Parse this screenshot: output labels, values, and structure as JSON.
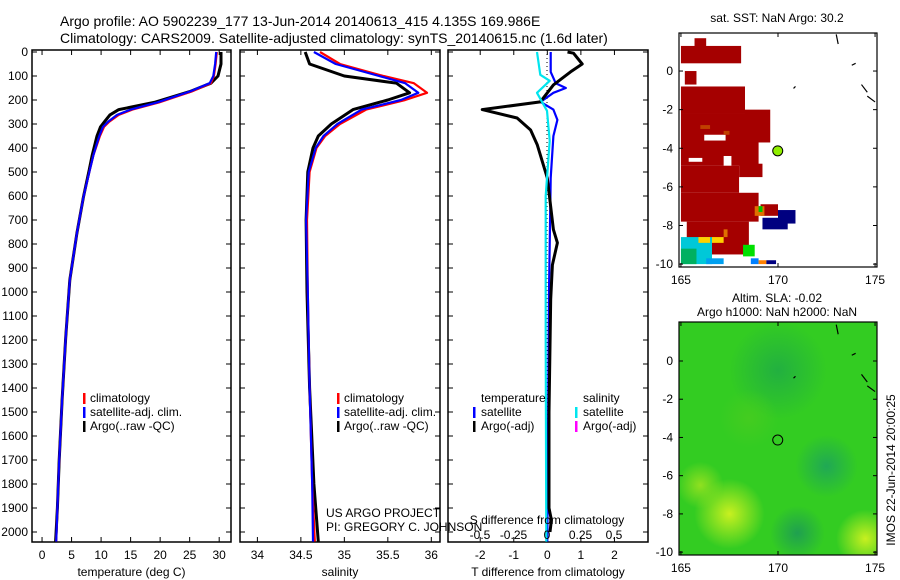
{
  "title": {
    "line1": "Argo profile: AO 5902239_177 13-Jun-2014 20140613_415 4.135S 169.986E",
    "line2": "Climatology: CARS2009. Satellite-adjusted climatology: synTS_20140615.nc (1.6d later)"
  },
  "credit": {
    "line1": "US ARGO PROJECT",
    "line2": "PI: GREGORY C. JOHNSON"
  },
  "footer_stamp": "IMOS 22-Jun-2014 20:00:25",
  "colors": {
    "climatology": "#ff0000",
    "satellite": "#0000ff",
    "argo": "#000000",
    "sal_satellite": "#00e5ee",
    "sal_argo": "#ff00ff",
    "sst_warm": "#a50000",
    "sst_navy": "#000080",
    "sla_green": "#33cc22"
  },
  "chart_data": [
    {
      "type": "line",
      "name": "temperature-profile",
      "xlabel": "temperature (deg C)",
      "xlim": [
        -1.7,
        32
      ],
      "ylim": [
        0,
        2050
      ],
      "y_reversed": true,
      "xticks": [
        0,
        5,
        10,
        15,
        20,
        25,
        30
      ],
      "yticks": [
        0,
        100,
        200,
        300,
        400,
        500,
        600,
        700,
        800,
        900,
        1000,
        1100,
        1200,
        1300,
        1400,
        1500,
        1600,
        1700,
        1800,
        1900,
        2000
      ],
      "legend": [
        "climatology",
        "satellite-adj. clim.",
        "Argo(..raw -QC)"
      ],
      "depth": [
        0,
        50,
        100,
        130,
        165,
        210,
        240,
        262,
        290,
        312,
        350,
        380,
        430,
        490,
        605,
        755,
        950,
        1190,
        1450,
        1700,
        1900,
        2040
      ],
      "series": [
        {
          "name": "climatology",
          "values": [
            29.6,
            29.4,
            29.1,
            28.6,
            25.3,
            19.8,
            15.3,
            13.0,
            11.4,
            10.5,
            9.8,
            9.4,
            8.7,
            8.1,
            7.0,
            5.9,
            4.7,
            4.0,
            3.4,
            2.9,
            2.6,
            2.4
          ]
        },
        {
          "name": "satellite-adj. clim.",
          "values": [
            29.5,
            29.3,
            29.0,
            28.4,
            25.0,
            19.5,
            15.0,
            12.7,
            11.2,
            10.3,
            9.7,
            9.3,
            8.7,
            8.1,
            7.0,
            5.9,
            4.7,
            4.0,
            3.4,
            2.9,
            2.6,
            2.4
          ]
        },
        {
          "name": "Argo(..raw -QC)",
          "values": [
            30.3,
            30.3,
            29.8,
            28.6,
            25.0,
            19.0,
            13.0,
            11.5,
            10.6,
            9.9,
            9.3,
            9.0,
            8.5,
            8.0,
            7.0,
            5.9,
            4.7,
            4.0,
            3.4,
            2.9,
            2.6,
            2.3
          ]
        }
      ]
    },
    {
      "type": "line",
      "name": "salinity-profile",
      "xlabel": "salinity",
      "xlim": [
        33.8,
        36.1
      ],
      "ylim": [
        0,
        2050
      ],
      "y_reversed": true,
      "xticks": [
        34,
        34.5,
        35,
        35.5,
        36
      ],
      "legend": [
        "climatology",
        "satellite-adj. clim.",
        "Argo(..raw -QC)"
      ],
      "depth": [
        0,
        50,
        100,
        130,
        170,
        200,
        240,
        300,
        350,
        400,
        500,
        700,
        1000,
        1400,
        1800,
        2040
      ],
      "series": [
        {
          "name": "climatology",
          "values": [
            34.72,
            34.95,
            35.45,
            35.8,
            35.95,
            35.7,
            35.25,
            34.95,
            34.78,
            34.68,
            34.6,
            34.57,
            34.58,
            34.6,
            34.63,
            34.66
          ]
        },
        {
          "name": "satellite-adj. clim.",
          "values": [
            34.65,
            34.9,
            35.4,
            35.7,
            35.85,
            35.65,
            35.2,
            34.92,
            34.76,
            34.67,
            34.59,
            34.56,
            34.58,
            34.6,
            34.63,
            34.64
          ]
        },
        {
          "name": "Argo(..raw -QC)",
          "values": [
            34.55,
            34.6,
            35.0,
            35.6,
            35.75,
            35.5,
            35.1,
            34.85,
            34.7,
            34.64,
            34.58,
            34.56,
            34.57,
            34.6,
            34.65,
            34.7
          ]
        }
      ]
    },
    {
      "type": "line",
      "name": "difference-profile",
      "xlabel": "T difference from climatology",
      "xlim": [
        -2.96,
        3
      ],
      "ylim": [
        0,
        2050
      ],
      "y_reversed": true,
      "xticks": [
        -2,
        -1,
        0,
        1,
        2
      ],
      "s_axis_label": "S difference from climatology",
      "s_xlim": [
        -0.5,
        0.5
      ],
      "s_xticks": [
        "-0.5",
        "-0.25",
        "0",
        "0.25",
        "0.5"
      ],
      "legend_headers": [
        "temperature",
        "salinity"
      ],
      "legend": {
        "temperature": [
          "satellite",
          "Argo(-adj)"
        ],
        "salinity": [
          "satellite",
          "Argo(-adj)"
        ]
      },
      "series": [
        {
          "name": "T satellite",
          "units": "T",
          "depth": [
            0,
            83,
            130,
            150,
            170,
            208,
            240,
            283,
            350,
            525,
            1000,
            2040
          ],
          "values": [
            0.1,
            0.1,
            0.25,
            0.55,
            0.18,
            -0.2,
            0.18,
            0.3,
            0.18,
            0.1,
            0.05,
            0.0
          ]
        },
        {
          "name": "T Argo(-adj)",
          "units": "T",
          "depth": [
            0,
            5,
            50,
            83,
            137,
            208,
            240,
            275,
            325,
            387,
            525,
            740,
            795,
            887,
            1030,
            1500,
            1900,
            1950,
            2000
          ],
          "values": [
            0.6,
            0.78,
            1.04,
            0.69,
            0.18,
            -0.21,
            -1.94,
            -0.9,
            -0.5,
            -0.3,
            0.0,
            0.18,
            0.3,
            0.15,
            0.1,
            0.05,
            0.05,
            0.12,
            0.08
          ]
        },
        {
          "name": "S satellite",
          "units": "S",
          "depth": [
            0,
            95,
            120,
            170,
            245,
            370,
            600,
            1200,
            2040
          ],
          "values": [
            -0.075,
            -0.05,
            0.02,
            -0.075,
            0.0,
            0.02,
            -0.01,
            -0.01,
            -0.005
          ]
        }
      ]
    },
    {
      "type": "heatmap",
      "name": "sst-map",
      "title": "sat. SST: NaN Argo: 30.2",
      "xlim": [
        164.9,
        175.1
      ],
      "ylim": [
        -10.15,
        1.97
      ],
      "xticks": [
        165,
        170,
        175
      ],
      "yticks": [
        0,
        -2,
        -4,
        -6,
        -8,
        -10
      ],
      "cells": [
        [
          165,
          168.1,
          0.4,
          1.3,
          "#a50000"
        ],
        [
          165.7,
          166.3,
          1.2,
          1.7,
          "#a50000"
        ],
        [
          165.2,
          165.8,
          -0.7,
          0,
          "#a50000"
        ],
        [
          165,
          168.3,
          -2.2,
          -0.8,
          "#a50000"
        ],
        [
          165,
          169.0,
          -4.9,
          -2.2,
          "#a50000"
        ],
        [
          168.3,
          169.6,
          -3.7,
          -2.0,
          "#a50000"
        ],
        [
          165,
          168.0,
          -6.3,
          -4.9,
          "#a50000"
        ],
        [
          168.0,
          169.2,
          -5.5,
          -4.8,
          "#a50000"
        ],
        [
          165,
          169.0,
          -7.8,
          -6.3,
          "#a50000"
        ],
        [
          169.1,
          170,
          -7.5,
          -6.9,
          "#a50000"
        ],
        [
          165.3,
          168.5,
          -9.5,
          -7.8,
          "#a50000"
        ],
        [
          166.2,
          167.3,
          -3.6,
          -3.3,
          "#ffffff"
        ],
        [
          165.4,
          166.1,
          -4.7,
          -4.5,
          "#ffffff"
        ],
        [
          167.2,
          167.6,
          -4.9,
          -4.4,
          "#ffffff"
        ],
        [
          168.0,
          169.3,
          -6.3,
          -5.5,
          "#ffffff"
        ],
        [
          166.0,
          166.5,
          -3.0,
          -2.8,
          "#c04000"
        ],
        [
          167.2,
          167.5,
          -3.3,
          -3.1,
          "#c04000"
        ],
        [
          168.8,
          169.3,
          -7.5,
          -7.0,
          "#e07000"
        ],
        [
          169.0,
          169.2,
          -7.3,
          -7.0,
          "#00c000"
        ],
        [
          169.2,
          170.5,
          -8.2,
          -7.6,
          "#000080"
        ],
        [
          170.0,
          170.9,
          -7.9,
          -7.2,
          "#000080"
        ],
        [
          165,
          166.6,
          -10,
          -8.6,
          "#00c8d8"
        ],
        [
          165,
          165.8,
          -10,
          -9.2,
          "#00b060"
        ],
        [
          166.3,
          167.2,
          -10,
          -9.7,
          "#00a0f0"
        ],
        [
          165.9,
          166.5,
          -8.9,
          -8.6,
          "#ffd000"
        ],
        [
          166.6,
          167.2,
          -8.9,
          -8.6,
          "#ffd000"
        ],
        [
          167.2,
          167.4,
          -8.6,
          -8.2,
          "#e07000"
        ],
        [
          168.2,
          168.8,
          -9.6,
          -9.0,
          "#00e000"
        ],
        [
          168.6,
          169.0,
          -10,
          -9.7,
          "#0080ff"
        ],
        [
          169.0,
          169.4,
          -10,
          -9.8,
          "#ff8000"
        ],
        [
          169.4,
          169.9,
          -10,
          -9.8,
          "#000080"
        ]
      ],
      "argo_point": {
        "lon": 169.986,
        "lat": -4.135,
        "color": "#90ee00"
      }
    },
    {
      "type": "heatmap",
      "name": "sla-map",
      "title_line1": "Altim. SLA: -0.02",
      "title_line2": "Argo h1000: NaN h2000: NaN",
      "xlim": [
        164.9,
        175.1
      ],
      "ylim": [
        -10.15,
        2.04
      ],
      "xticks": [
        165,
        170,
        175
      ],
      "yticks": [
        0,
        -2,
        -4,
        -6,
        -8,
        -10
      ],
      "blobs": [
        [
          167.5,
          -8.0,
          1.8,
          "#c8f020"
        ],
        [
          174.5,
          -9.3,
          1.5,
          "#c8f020"
        ],
        [
          166,
          -6.5,
          1.2,
          "#90e020"
        ],
        [
          170,
          -0.5,
          2.5,
          "#22b040"
        ],
        [
          172.5,
          -5.5,
          1.6,
          "#20a855"
        ],
        [
          168.5,
          -3,
          1.5,
          "#44cc20"
        ],
        [
          171,
          -9,
          1.4,
          "#1fa050"
        ]
      ],
      "argo_point": {
        "lon": 169.986,
        "lat": -4.135
      }
    }
  ]
}
